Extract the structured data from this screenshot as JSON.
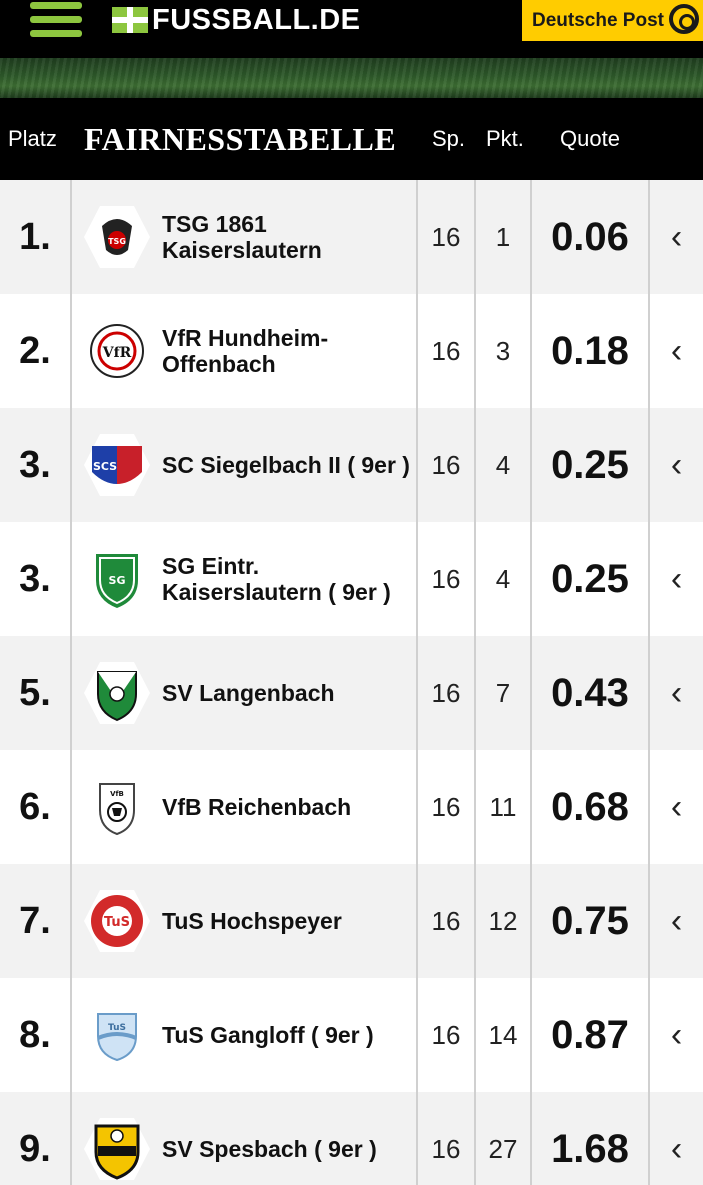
{
  "header": {
    "logo_text": "FUSSBALL.DE",
    "sponsor_text": "Deutsche Post"
  },
  "table": {
    "columns": {
      "platz": "Platz",
      "title": "FAIRNESSTABELLE",
      "sp": "Sp.",
      "pkt": "Pkt.",
      "quote": "Quote"
    },
    "rows": [
      {
        "rank": "1.",
        "team": "TSG 1861 Kaiserslautern",
        "sp": "16",
        "pkt": "1",
        "quote": "0.06",
        "arrow": "‹"
      },
      {
        "rank": "2.",
        "team": "VfR Hundheim-Offenbach",
        "sp": "16",
        "pkt": "3",
        "quote": "0.18",
        "arrow": "‹"
      },
      {
        "rank": "3.",
        "team": "SC Siegelbach II  ( 9er )",
        "sp": "16",
        "pkt": "4",
        "quote": "0.25",
        "arrow": "‹"
      },
      {
        "rank": "3.",
        "team": "SG Eintr. Kaiserslautern  ( 9er )",
        "sp": "16",
        "pkt": "4",
        "quote": "0.25",
        "arrow": "‹"
      },
      {
        "rank": "5.",
        "team": "SV Langenbach",
        "sp": "16",
        "pkt": "7",
        "quote": "0.43",
        "arrow": "‹"
      },
      {
        "rank": "6.",
        "team": "VfB Reichenbach",
        "sp": "16",
        "pkt": "11",
        "quote": "0.68",
        "arrow": "‹"
      },
      {
        "rank": "7.",
        "team": "TuS Hochspeyer",
        "sp": "16",
        "pkt": "12",
        "quote": "0.75",
        "arrow": "‹"
      },
      {
        "rank": "8.",
        "team": "TuS Gangloff  ( 9er )",
        "sp": "16",
        "pkt": "14",
        "quote": "0.87",
        "arrow": "‹"
      },
      {
        "rank": "9.",
        "team": "SV Spesbach     ( 9er )",
        "sp": "16",
        "pkt": "27",
        "quote": "1.68",
        "arrow": "‹"
      }
    ]
  },
  "colors": {
    "accent": "#8dc63f",
    "sponsor": "#ffcc00",
    "header_bg": "#000000"
  }
}
